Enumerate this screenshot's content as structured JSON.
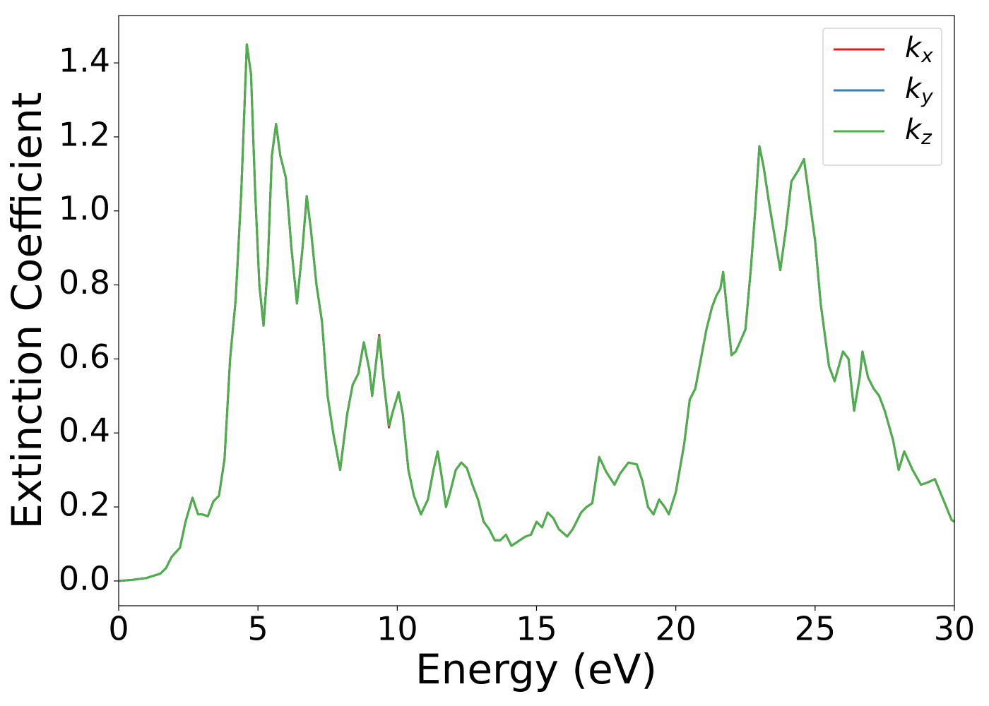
{
  "chart_data": {
    "type": "line",
    "xlabel": "Energy (eV)",
    "ylabel": "Extinction Coefficient",
    "xlim": [
      0,
      30
    ],
    "ylim": [
      -0.067,
      1.528
    ],
    "xticks": [
      0,
      5,
      10,
      15,
      20,
      25,
      30
    ],
    "yticks": [
      {
        "value": 0,
        "label": "0.0"
      },
      {
        "value": 0.2,
        "label": "0.2"
      },
      {
        "value": 0.4,
        "label": "0.4"
      },
      {
        "value": 0.6,
        "label": "0.6"
      },
      {
        "value": 0.8,
        "label": "0.8"
      },
      {
        "value": 1.0,
        "label": "1.0"
      },
      {
        "value": 1.2,
        "label": "1.2"
      },
      {
        "value": 1.4,
        "label": "1.4"
      }
    ],
    "legend": "upper right",
    "x": [
      0,
      0.5,
      1,
      1.5,
      1.7,
      1.9,
      2.2,
      2.4,
      2.65,
      2.85,
      3.0,
      3.2,
      3.4,
      3.6,
      3.8,
      4.0,
      4.2,
      4.4,
      4.6,
      4.75,
      4.9,
      5.05,
      5.2,
      5.35,
      5.5,
      5.65,
      5.8,
      6.0,
      6.2,
      6.4,
      6.6,
      6.75,
      6.9,
      7.1,
      7.3,
      7.5,
      7.7,
      7.95,
      8.2,
      8.4,
      8.6,
      8.8,
      9.0,
      9.1,
      9.35,
      9.5,
      9.7,
      9.85,
      10.05,
      10.2,
      10.4,
      10.6,
      10.85,
      11.1,
      11.3,
      11.45,
      11.6,
      11.75,
      11.9,
      12.1,
      12.3,
      12.5,
      12.7,
      12.9,
      13.1,
      13.3,
      13.5,
      13.7,
      13.9,
      14.1,
      14.4,
      14.6,
      14.8,
      15.0,
      15.2,
      15.4,
      15.6,
      15.8,
      16.1,
      16.3,
      16.6,
      16.8,
      17.0,
      17.25,
      17.5,
      17.8,
      18.0,
      18.3,
      18.6,
      18.8,
      19.0,
      19.2,
      19.4,
      19.6,
      19.75,
      20.0,
      20.3,
      20.5,
      20.7,
      20.9,
      21.1,
      21.3,
      21.45,
      21.6,
      21.7,
      21.85,
      22.0,
      22.15,
      22.3,
      22.5,
      22.7,
      22.85,
      23.0,
      23.15,
      23.35,
      23.55,
      23.75,
      23.95,
      24.15,
      24.4,
      24.6,
      24.8,
      25.0,
      25.2,
      25.5,
      25.7,
      25.85,
      26.0,
      26.2,
      26.4,
      26.6,
      26.7,
      26.9,
      27.1,
      27.3,
      27.5,
      27.8,
      28.0,
      28.2,
      28.5,
      28.8,
      29.0,
      29.3,
      29.6,
      29.9,
      30
    ],
    "series": [
      {
        "name": "kx",
        "color": "#e41a1c",
        "values": [
          0,
          0.003,
          0.008,
          0.02,
          0.035,
          0.065,
          0.09,
          0.16,
          0.225,
          0.18,
          0.18,
          0.175,
          0.215,
          0.23,
          0.33,
          0.6,
          0.76,
          1.05,
          1.45,
          1.37,
          1.05,
          0.8,
          0.69,
          0.85,
          1.15,
          1.235,
          1.15,
          1.09,
          0.9,
          0.75,
          0.9,
          1.04,
          0.95,
          0.8,
          0.7,
          0.5,
          0.4,
          0.3,
          0.45,
          0.53,
          0.56,
          0.645,
          0.57,
          0.5,
          0.665,
          0.55,
          0.415,
          0.46,
          0.51,
          0.45,
          0.3,
          0.23,
          0.18,
          0.22,
          0.3,
          0.35,
          0.28,
          0.2,
          0.24,
          0.3,
          0.32,
          0.305,
          0.26,
          0.22,
          0.16,
          0.14,
          0.11,
          0.11,
          0.125,
          0.095,
          0.11,
          0.12,
          0.125,
          0.16,
          0.145,
          0.185,
          0.17,
          0.14,
          0.12,
          0.14,
          0.185,
          0.2,
          0.21,
          0.335,
          0.295,
          0.26,
          0.29,
          0.32,
          0.315,
          0.27,
          0.2,
          0.18,
          0.22,
          0.2,
          0.18,
          0.24,
          0.37,
          0.49,
          0.52,
          0.6,
          0.68,
          0.74,
          0.77,
          0.79,
          0.835,
          0.72,
          0.61,
          0.62,
          0.645,
          0.68,
          0.85,
          1.0,
          1.175,
          1.12,
          1.02,
          0.93,
          0.84,
          0.95,
          1.08,
          1.11,
          1.14,
          1.03,
          0.92,
          0.75,
          0.58,
          0.54,
          0.58,
          0.62,
          0.6,
          0.46,
          0.55,
          0.62,
          0.55,
          0.52,
          0.5,
          0.46,
          0.38,
          0.3,
          0.35,
          0.3,
          0.26,
          0.265,
          0.275,
          0.22,
          0.165,
          0.16
        ]
      },
      {
        "name": "ky",
        "color": "#377eb8",
        "values": [
          0,
          0.003,
          0.008,
          0.02,
          0.035,
          0.065,
          0.09,
          0.16,
          0.225,
          0.18,
          0.18,
          0.175,
          0.215,
          0.23,
          0.33,
          0.6,
          0.76,
          1.05,
          1.45,
          1.37,
          1.05,
          0.8,
          0.69,
          0.85,
          1.15,
          1.235,
          1.15,
          1.09,
          0.9,
          0.75,
          0.9,
          1.04,
          0.95,
          0.8,
          0.7,
          0.5,
          0.4,
          0.3,
          0.45,
          0.53,
          0.56,
          0.645,
          0.57,
          0.5,
          0.66,
          0.55,
          0.42,
          0.46,
          0.51,
          0.45,
          0.3,
          0.23,
          0.18,
          0.22,
          0.3,
          0.35,
          0.28,
          0.2,
          0.24,
          0.3,
          0.32,
          0.305,
          0.26,
          0.22,
          0.16,
          0.14,
          0.11,
          0.11,
          0.125,
          0.095,
          0.11,
          0.12,
          0.125,
          0.16,
          0.145,
          0.185,
          0.17,
          0.14,
          0.12,
          0.14,
          0.185,
          0.2,
          0.21,
          0.335,
          0.295,
          0.26,
          0.29,
          0.32,
          0.315,
          0.27,
          0.2,
          0.18,
          0.22,
          0.2,
          0.18,
          0.24,
          0.37,
          0.49,
          0.52,
          0.6,
          0.68,
          0.74,
          0.77,
          0.79,
          0.835,
          0.72,
          0.61,
          0.62,
          0.645,
          0.68,
          0.85,
          1.0,
          1.175,
          1.12,
          1.02,
          0.93,
          0.84,
          0.95,
          1.08,
          1.11,
          1.14,
          1.03,
          0.92,
          0.75,
          0.58,
          0.54,
          0.58,
          0.62,
          0.6,
          0.46,
          0.55,
          0.62,
          0.55,
          0.52,
          0.5,
          0.46,
          0.38,
          0.3,
          0.35,
          0.3,
          0.26,
          0.265,
          0.275,
          0.22,
          0.165,
          0.16
        ]
      },
      {
        "name": "kz",
        "color": "#4daf4a",
        "values": [
          0,
          0.003,
          0.008,
          0.02,
          0.035,
          0.065,
          0.09,
          0.16,
          0.225,
          0.18,
          0.18,
          0.175,
          0.215,
          0.23,
          0.33,
          0.6,
          0.76,
          1.05,
          1.45,
          1.37,
          1.05,
          0.8,
          0.69,
          0.85,
          1.15,
          1.235,
          1.15,
          1.09,
          0.9,
          0.75,
          0.9,
          1.04,
          0.95,
          0.8,
          0.7,
          0.5,
          0.4,
          0.3,
          0.45,
          0.53,
          0.56,
          0.645,
          0.57,
          0.5,
          0.66,
          0.55,
          0.42,
          0.46,
          0.51,
          0.45,
          0.3,
          0.23,
          0.18,
          0.22,
          0.3,
          0.35,
          0.28,
          0.2,
          0.24,
          0.3,
          0.32,
          0.305,
          0.26,
          0.22,
          0.16,
          0.14,
          0.11,
          0.11,
          0.125,
          0.095,
          0.11,
          0.12,
          0.125,
          0.16,
          0.145,
          0.185,
          0.17,
          0.14,
          0.12,
          0.14,
          0.185,
          0.2,
          0.21,
          0.335,
          0.295,
          0.26,
          0.29,
          0.32,
          0.315,
          0.27,
          0.2,
          0.18,
          0.22,
          0.2,
          0.18,
          0.24,
          0.37,
          0.49,
          0.52,
          0.6,
          0.68,
          0.74,
          0.77,
          0.79,
          0.835,
          0.72,
          0.61,
          0.62,
          0.645,
          0.68,
          0.85,
          1.0,
          1.175,
          1.12,
          1.02,
          0.93,
          0.84,
          0.95,
          1.08,
          1.11,
          1.14,
          1.03,
          0.92,
          0.75,
          0.58,
          0.54,
          0.58,
          0.62,
          0.6,
          0.46,
          0.55,
          0.62,
          0.55,
          0.52,
          0.5,
          0.46,
          0.38,
          0.3,
          0.35,
          0.3,
          0.26,
          0.265,
          0.275,
          0.22,
          0.165,
          0.16
        ]
      }
    ]
  }
}
